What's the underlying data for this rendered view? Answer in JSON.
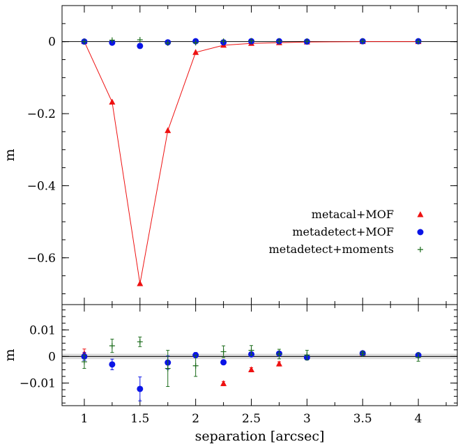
{
  "chart_data": [
    {
      "type": "scatter",
      "panel": "top",
      "xlabel": "",
      "ylabel": "m",
      "xlim": [
        0.8,
        4.35
      ],
      "ylim": [
        -0.73,
        0.1
      ],
      "yticks": [
        0,
        -0.2,
        -0.4,
        -0.6
      ],
      "ytick_labels": [
        "0",
        "−0.2",
        "−0.4",
        "−0.6"
      ],
      "reference_line": 0,
      "legend_position": "right",
      "series": [
        {
          "name": "metacal+MOF",
          "marker": "triangle",
          "color": "#ee1111",
          "connected": true,
          "x": [
            1,
            1.25,
            1.5,
            1.75,
            2,
            2.25,
            2.5,
            2.75,
            3,
            3.5,
            4
          ],
          "y": [
            0,
            -0.168,
            -0.672,
            -0.247,
            -0.03,
            -0.01,
            -0.005,
            -0.003,
            -0.001,
            0,
            0
          ]
        },
        {
          "name": "metadetect+MOF",
          "marker": "circle",
          "color": "#0a14e6",
          "connected": false,
          "x": [
            1,
            1.25,
            1.5,
            1.75,
            2,
            2.25,
            2.5,
            2.75,
            3,
            3.5,
            4
          ],
          "y": [
            0,
            -0.003,
            -0.012,
            -0.002,
            0.001,
            -0.002,
            0.001,
            0.001,
            0,
            0.001,
            0.001
          ]
        },
        {
          "name": "metadetect+moments",
          "marker": "plus",
          "color": "#1a6b1a",
          "connected": false,
          "x": [
            1,
            1.25,
            1.5,
            1.75,
            2,
            2.25,
            2.5,
            2.75,
            3,
            3.5,
            4
          ],
          "y": [
            0,
            0.004,
            0.005,
            -0.004,
            -0.003,
            0.001,
            0.002,
            0.001,
            0.001,
            0.001,
            0
          ]
        }
      ]
    },
    {
      "type": "scatter",
      "panel": "bottom",
      "xlabel": "separation [arcsec]",
      "ylabel": "m",
      "xlim": [
        0.8,
        4.35
      ],
      "ylim": [
        -0.0185,
        0.0195
      ],
      "xticks": [
        1,
        1.5,
        2,
        2.5,
        3,
        3.5,
        4
      ],
      "xtick_labels": [
        "1",
        "1.5",
        "2",
        "2.5",
        "3",
        "3.5",
        "4"
      ],
      "yticks": [
        0.01,
        0,
        -0.01
      ],
      "ytick_labels": [
        "0.01",
        "0",
        "−0.01"
      ],
      "reference_line": 0,
      "shaded_band": [
        -0.001,
        0.001
      ],
      "series": [
        {
          "name": "metacal+MOF",
          "marker": "triangle",
          "color": "#ee1111",
          "x": [
            1,
            2.25,
            2.5,
            2.75,
            3.5
          ],
          "y": [
            0.001,
            -0.0102,
            -0.005,
            -0.0028,
            0.0012
          ],
          "err": [
            0.0018,
            0.0008,
            0.0008,
            0.0008,
            0.0008
          ]
        },
        {
          "name": "metadetect+MOF",
          "marker": "circle",
          "color": "#0a14e6",
          "x": [
            1,
            1.25,
            1.5,
            1.75,
            2,
            2.25,
            2.5,
            2.75,
            3,
            3.5,
            4
          ],
          "y": [
            0.0,
            -0.003,
            -0.0122,
            -0.0023,
            0.0005,
            -0.0022,
            0.0008,
            0.0011,
            -0.0004,
            0.0012,
            0.0005
          ],
          "err": [
            0.0015,
            0.002,
            0.0045,
            0.0025,
            0.001,
            0.0008,
            0.0008,
            0.0006,
            0.0006,
            0.0006,
            0.0006
          ]
        },
        {
          "name": "metadetect+moments",
          "marker": "plus",
          "color": "#1a6b1a",
          "x": [
            1,
            1.25,
            1.5,
            1.75,
            2,
            2.25,
            2.5,
            2.75,
            3,
            3.5,
            4
          ],
          "y": [
            -0.002,
            0.004,
            0.0055,
            -0.0045,
            -0.0035,
            0.0018,
            0.0023,
            0.0009,
            0.0005,
            0.0011,
            -0.0003
          ],
          "err": [
            0.0025,
            0.0025,
            0.0018,
            0.0068,
            0.004,
            0.0022,
            0.0018,
            0.0018,
            0.0018,
            0.0008,
            0.0015
          ]
        }
      ]
    }
  ]
}
